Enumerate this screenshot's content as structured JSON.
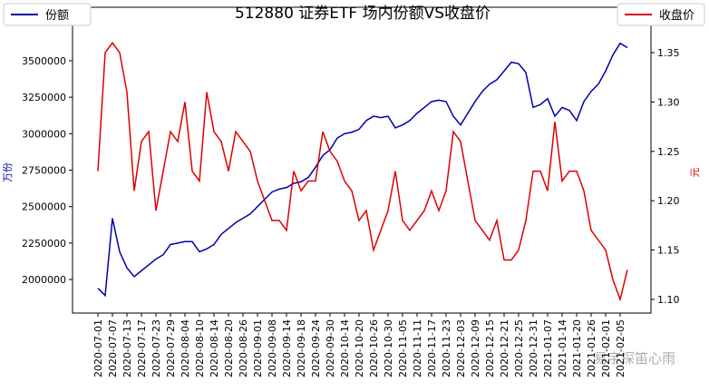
{
  "chart_data": {
    "type": "line",
    "title": "512880 证券ETF 场内份额VS收盘价",
    "y_label": "万份",
    "y2_label": "元",
    "watermark": "易宇探笛心雨",
    "categories": [
      "2020-07-01",
      null,
      "2020-07-07",
      null,
      "2020-07-13",
      null,
      "2020-07-17",
      null,
      "2020-07-23",
      null,
      "2020-07-29",
      null,
      "2020-08-04",
      null,
      "2020-08-10",
      null,
      "2020-08-14",
      null,
      "2020-08-20",
      null,
      "2020-08-26",
      null,
      "2020-09-01",
      null,
      "2020-09-08",
      null,
      "2020-09-14",
      null,
      "2020-09-18",
      null,
      "2020-09-24",
      null,
      "2020-09-30",
      null,
      "2020-10-14",
      null,
      "2020-10-20",
      null,
      "2020-10-26",
      null,
      "2020-10-30",
      null,
      "2020-11-05",
      null,
      "2020-11-11",
      null,
      "2020-11-17",
      null,
      "2020-11-23",
      null,
      "2020-12-03",
      null,
      "2020-12-09",
      null,
      "2020-12-15",
      null,
      "2020-12-21",
      null,
      "2020-12-25",
      null,
      "2020-12-31",
      null,
      "2021-01-07",
      null,
      "2021-01-14",
      null,
      "2021-01-20",
      null,
      "2021-01-26",
      null,
      "2021-02-01",
      null,
      "2021-02-05",
      null
    ],
    "series": [
      {
        "name": "份额",
        "color": "#0000aa",
        "axis": "y",
        "legend": "upper left",
        "values": [
          1940000,
          1890000,
          2420000,
          2190000,
          2080000,
          2020000,
          2060000,
          2100000,
          2140000,
          2170000,
          2240000,
          2250000,
          2260000,
          2260000,
          2190000,
          2210000,
          2240000,
          2310000,
          2350000,
          2390000,
          2420000,
          2450000,
          2500000,
          2550000,
          2600000,
          2620000,
          2630000,
          2660000,
          2670000,
          2700000,
          2770000,
          2850000,
          2890000,
          2970000,
          3000000,
          3010000,
          3030000,
          3090000,
          3120000,
          3110000,
          3120000,
          3040000,
          3060000,
          3090000,
          3140000,
          3180000,
          3220000,
          3230000,
          3220000,
          3120000,
          3060000,
          3140000,
          3220000,
          3290000,
          3340000,
          3370000,
          3430000,
          3490000,
          3480000,
          3420000,
          3180000,
          3200000,
          3240000,
          3120000,
          3180000,
          3160000,
          3090000,
          3220000,
          3290000,
          3340000,
          3430000,
          3540000,
          3620000,
          3590000
        ]
      },
      {
        "name": "收盘价",
        "color": "#dd0000",
        "axis": "y2",
        "legend": "upper right",
        "values": [
          1.23,
          1.35,
          1.36,
          1.35,
          1.31,
          1.21,
          1.26,
          1.27,
          1.19,
          1.23,
          1.27,
          1.26,
          1.3,
          1.23,
          1.22,
          1.31,
          1.27,
          1.26,
          1.23,
          1.27,
          1.26,
          1.25,
          1.22,
          1.2,
          1.18,
          1.18,
          1.17,
          1.23,
          1.21,
          1.22,
          1.22,
          1.27,
          1.25,
          1.24,
          1.22,
          1.21,
          1.18,
          1.19,
          1.15,
          1.17,
          1.19,
          1.23,
          1.18,
          1.17,
          1.18,
          1.19,
          1.21,
          1.19,
          1.21,
          1.27,
          1.26,
          1.22,
          1.18,
          1.17,
          1.16,
          1.18,
          1.14,
          1.14,
          1.15,
          1.18,
          1.23,
          1.23,
          1.21,
          1.28,
          1.22,
          1.23,
          1.23,
          1.21,
          1.17,
          1.16,
          1.15,
          1.12,
          1.1,
          1.13
        ]
      }
    ],
    "ylim": [
      1770000,
      3867000
    ],
    "yticks": [
      2000000,
      2250000,
      2500000,
      2750000,
      3000000,
      3250000,
      3500000
    ],
    "y2lim": [
      1.0862,
      1.396
    ],
    "y2ticks": [
      {
        "value": 1.1,
        "label": "1.10"
      },
      1.15,
      {
        "value": 1.2,
        "label": "1.20"
      },
      1.25,
      {
        "value": 1.3,
        "label": "1.30"
      },
      1.35
    ]
  }
}
